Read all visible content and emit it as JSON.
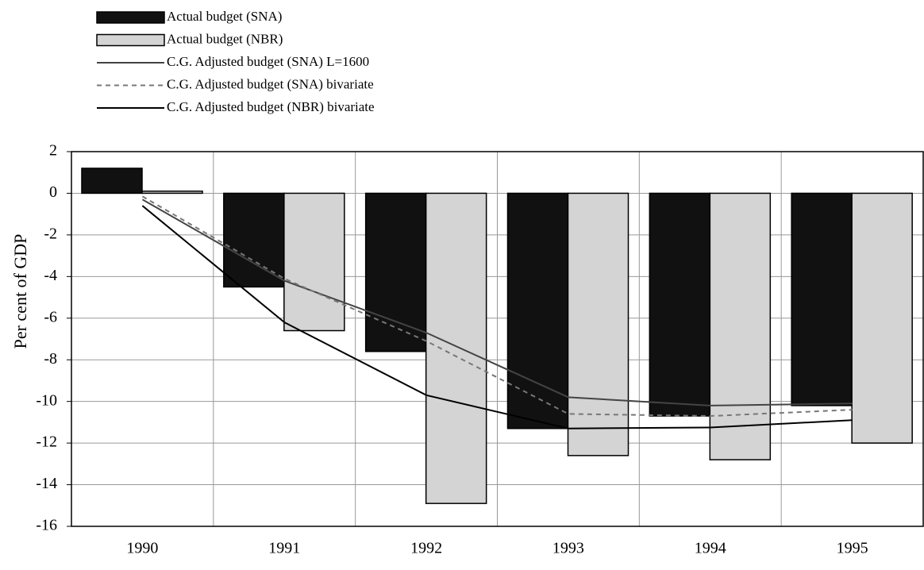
{
  "chart_data": {
    "type": "bar",
    "ylabel": "Per cent of GDP",
    "categories": [
      "1990",
      "1991",
      "1992",
      "1993",
      "1994",
      "1995"
    ],
    "series": [
      {
        "name": "Actual budget (SNA)",
        "type": "bar",
        "color": "#111111",
        "values": [
          1.2,
          -4.5,
          -7.6,
          -11.3,
          -10.7,
          -10.2
        ]
      },
      {
        "name": "Actual budget (NBR)",
        "type": "bar",
        "color": "#d4d4d4",
        "values": [
          0.1,
          -6.6,
          -14.9,
          -12.6,
          -12.8,
          -12.0
        ]
      },
      {
        "name": "C.G. Adjusted budget (SNA) L=1600",
        "type": "line",
        "dash": "solid",
        "color": "#444444",
        "values": [
          -0.3,
          -4.2,
          -6.7,
          -9.8,
          -10.2,
          -10.1
        ]
      },
      {
        "name": "C.G. Adjusted budget (SNA) bivariate",
        "type": "line",
        "dash": "dashed",
        "color": "#777777",
        "values": [
          -0.15,
          -4.1,
          -7.1,
          -10.6,
          -10.7,
          -10.4
        ]
      },
      {
        "name": "C.G. Adjusted budget (NBR) bivariate",
        "type": "line",
        "dash": "solid",
        "color": "#000000",
        "values": [
          -0.6,
          -6.2,
          -9.7,
          -11.3,
          -11.25,
          -10.9
        ]
      }
    ],
    "ylim": [
      -16,
      2
    ],
    "yticks": [
      2,
      0,
      -2,
      -4,
      -6,
      -8,
      -10,
      -12,
      -14,
      -16
    ],
    "grid": true
  }
}
